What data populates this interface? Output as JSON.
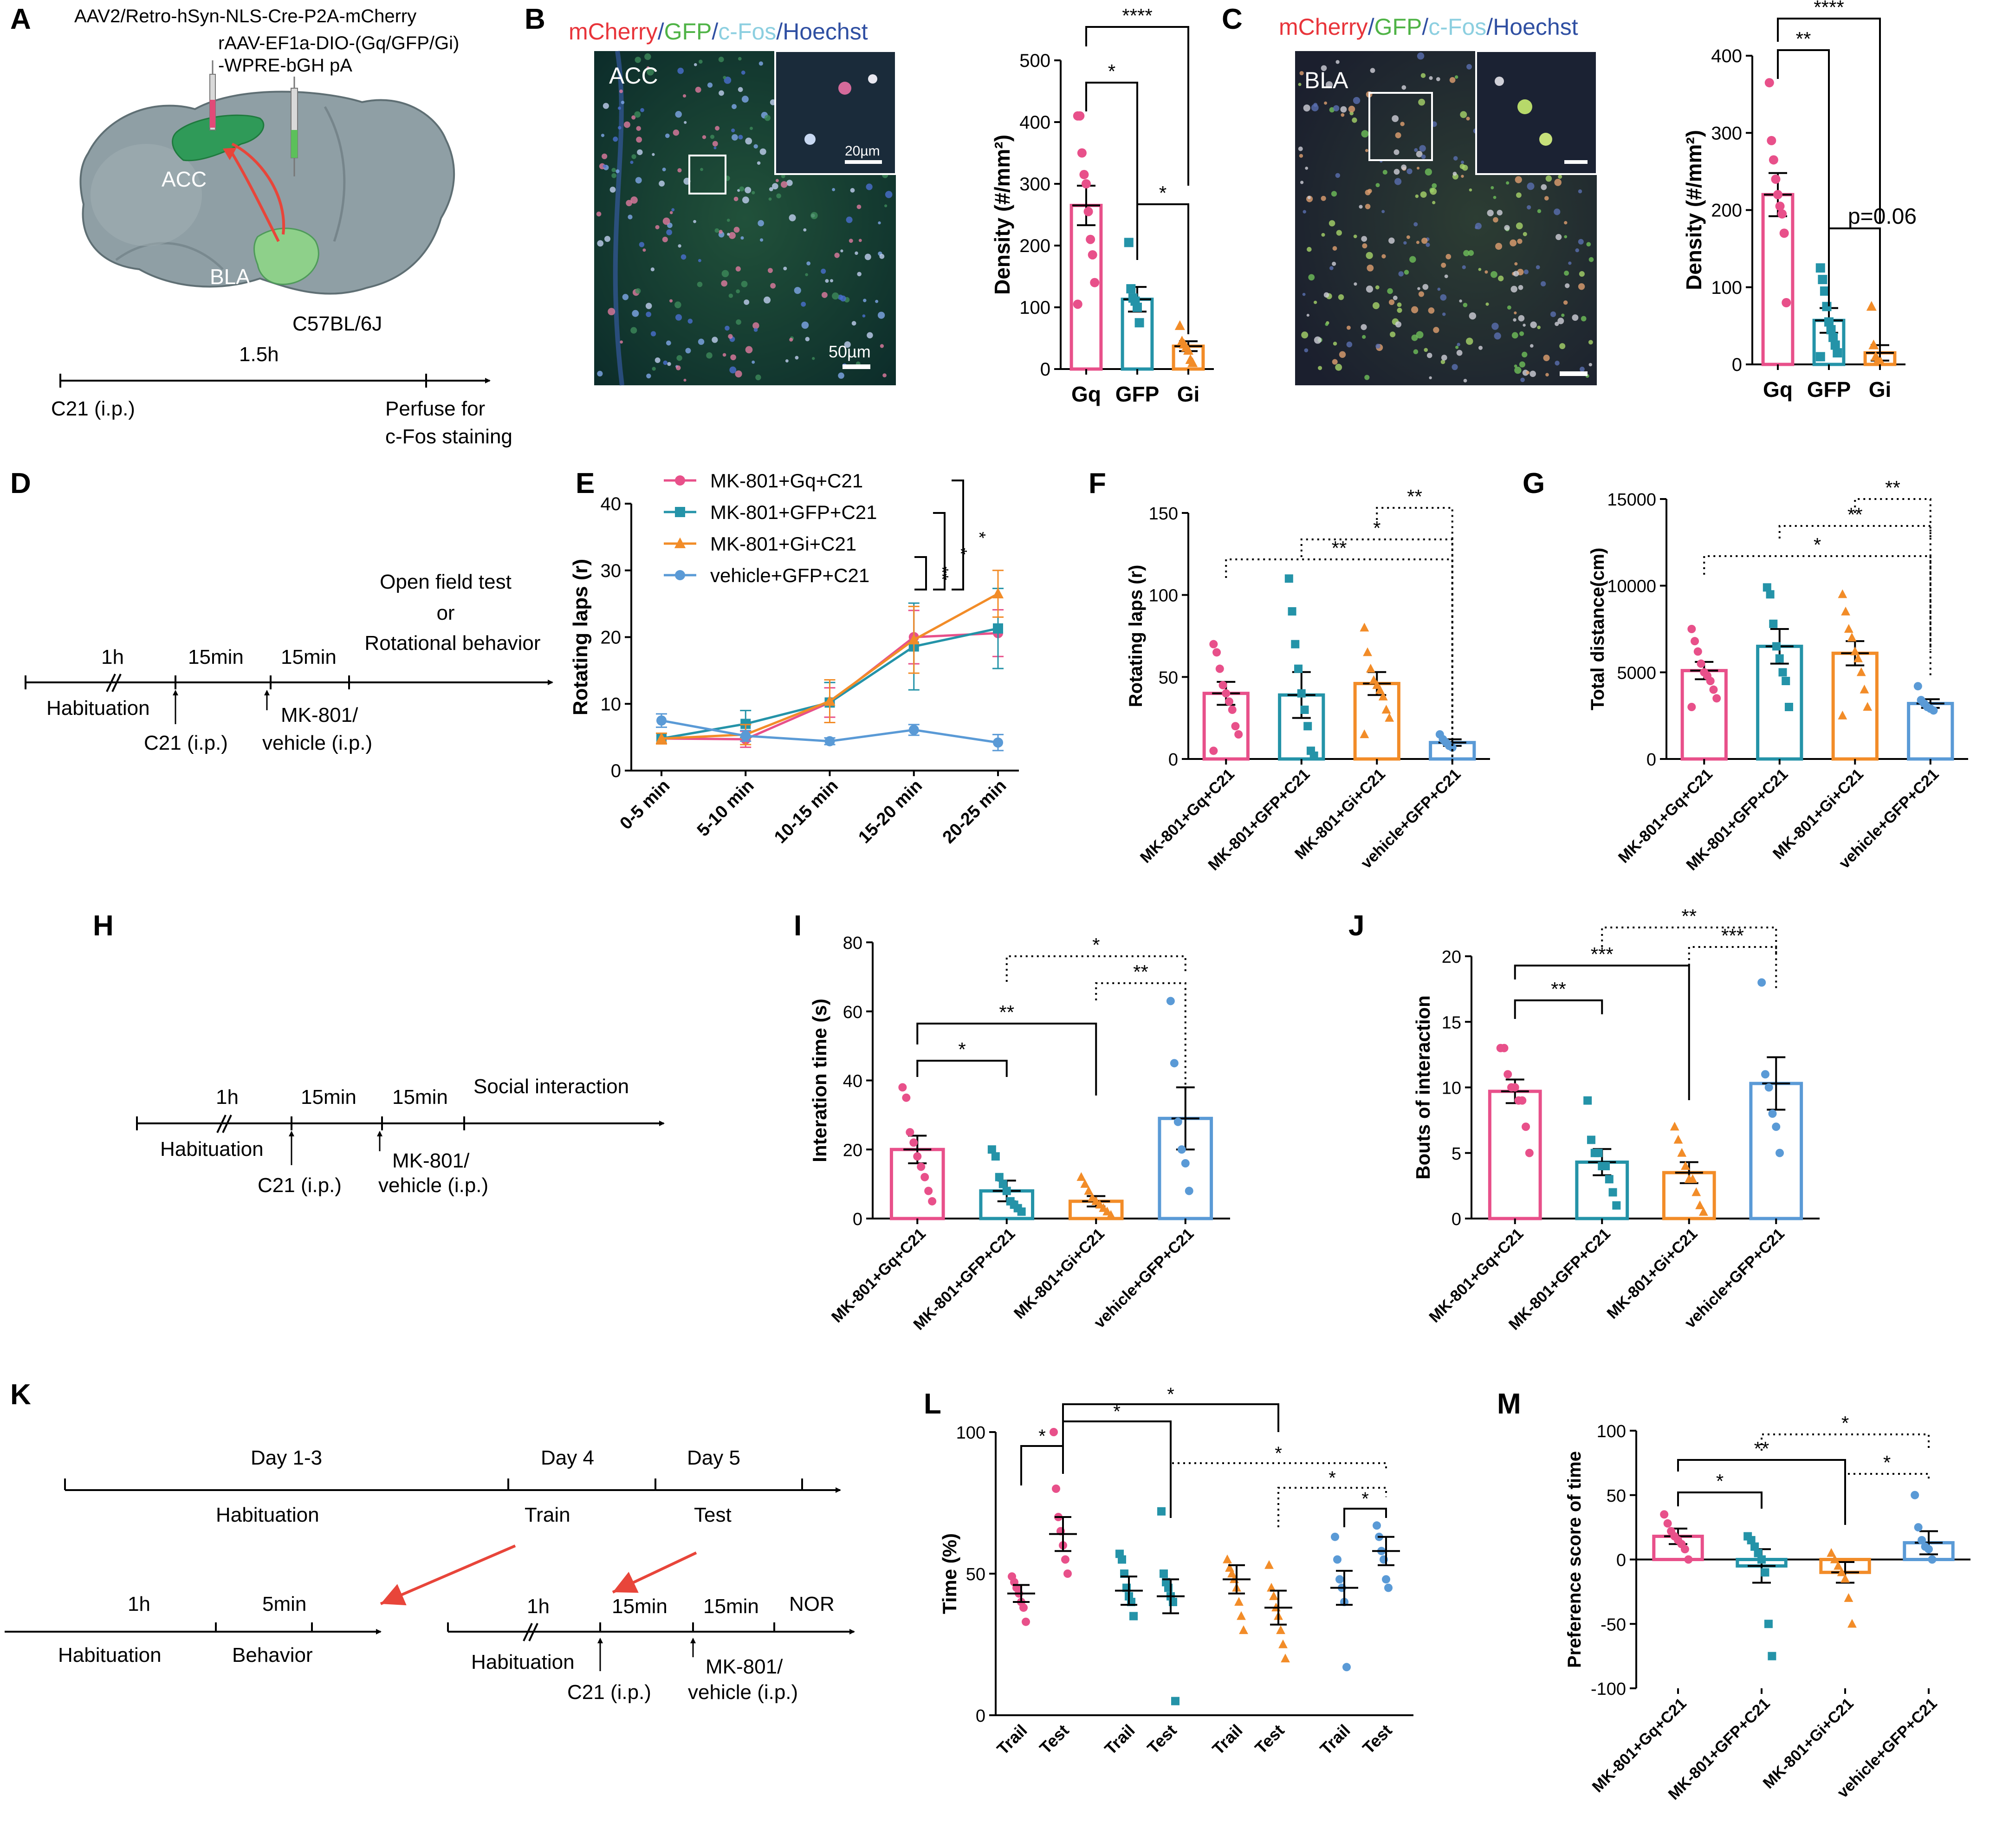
{
  "colors": {
    "gq": "#e8508a",
    "gfp": "#2493a8",
    "gi": "#f28c28",
    "veh": "#5a9ad6",
    "arrow": "#e8453a"
  },
  "panel_letters": [
    "A",
    "B",
    "C",
    "D",
    "E",
    "F",
    "G",
    "H",
    "I",
    "J",
    "K",
    "L",
    "M"
  ],
  "panelA": {
    "virus1": "AAV2/Retro-hSyn-NLS-Cre-P2A-mCherry",
    "virus2_line1": "rAAV-EF1a-DIO-(Gq/GFP/Gi)",
    "virus2_line2": "-WPRE-bGH pA",
    "acc": "ACC",
    "bla": "BLA",
    "strain": "C57BL/6J",
    "time": "1.5h",
    "start": "C21 (i.p.)",
    "end_line1": "Perfuse for",
    "end_line2": "c-Fos staining"
  },
  "micro_legend": [
    {
      "text": "mCherry",
      "color": "#e8343a"
    },
    {
      "text": "/",
      "color": "#2f4fa2"
    },
    {
      "text": "GFP",
      "color": "#4fb346"
    },
    {
      "text": "/",
      "color": "#2f4fa2"
    },
    {
      "text": "c-Fos",
      "color": "#8ccfe0"
    },
    {
      "text": "/",
      "color": "#2f4fa2"
    },
    {
      "text": "Hoechst",
      "color": "#2f4fa2"
    }
  ],
  "micro_B": {
    "region": "ACC",
    "inset_scale": "20µm",
    "scale": "50µm"
  },
  "micro_C": {
    "region": "BLA"
  },
  "timeline_D": {
    "t1": "1h",
    "t2": "15min",
    "t3": "15min",
    "end_line1": "Open field test",
    "end_line2": "or",
    "end_line3": "Rotational behavior",
    "hab": "Habituation",
    "c21": "C21 (i.p.)",
    "mk_line1": "MK-801/",
    "mk_line2": "vehicle (i.p.)"
  },
  "timeline_H": {
    "t1": "1h",
    "t2": "15min",
    "t3": "15min",
    "end": "Social interaction",
    "hab": "Habituation",
    "c21": "C21 (i.p.)",
    "mk_line1": "MK-801/",
    "mk_line2": "vehicle (i.p.)"
  },
  "timeline_K": {
    "d1": "Day 1-3",
    "d2": "Day 4",
    "d3": "Day 5",
    "hab": "Habituation",
    "train": "Train",
    "test": "Test",
    "sub1_t1": "1h",
    "sub1_t2": "5min",
    "sub1_hab": "Habituation",
    "sub1_beh": "Behavior",
    "sub2_t1": "1h",
    "sub2_t2": "15min",
    "sub2_t3": "15min",
    "sub2_end": "NOR",
    "sub2_hab": "Habituation",
    "sub2_c21": "C21 (i.p.)",
    "sub2_mk1": "MK-801/",
    "sub2_mk2": "vehicle (i.p.)"
  },
  "chart_data": [
    {
      "id": "B",
      "type": "bar",
      "categories": [
        "Gq",
        "GFP",
        "Gi"
      ],
      "values": [
        265,
        113,
        37
      ],
      "errors": [
        32,
        20,
        8
      ],
      "ylabel": "Density (#/mm²)",
      "ylim": [
        0,
        500
      ],
      "yticks": [
        0,
        100,
        200,
        300,
        400,
        500
      ],
      "points": [
        [
          410,
          410,
          350,
          315,
          300,
          255,
          210,
          185,
          140,
          105
        ],
        [
          205,
          130,
          115,
          110,
          100,
          75
        ],
        [
          70,
          45,
          40,
          35,
          30,
          15,
          10
        ]
      ],
      "sig": [
        {
          "a": 0,
          "b": 1,
          "label": "*"
        },
        {
          "a": 1,
          "b": 2,
          "label": "*"
        },
        {
          "a": 0,
          "b": 2,
          "label": "****"
        }
      ]
    },
    {
      "id": "C",
      "type": "bar",
      "categories": [
        "Gq",
        "GFP",
        "Gi"
      ],
      "values": [
        220,
        57,
        15
      ],
      "errors": [
        28,
        16,
        10
      ],
      "ylabel": "Density (#/mm²)",
      "ylim": [
        0,
        400
      ],
      "yticks": [
        0,
        100,
        200,
        300,
        400
      ],
      "points": [
        [
          365,
          290,
          265,
          240,
          220,
          205,
          195,
          170,
          80
        ],
        [
          125,
          110,
          95,
          75,
          55,
          45,
          35,
          25,
          15,
          10
        ],
        [
          75,
          25,
          10,
          5,
          5
        ]
      ],
      "sig": [
        {
          "a": 0,
          "b": 1,
          "label": "**"
        },
        {
          "a": 1,
          "b": 2,
          "label": "p=0.06"
        },
        {
          "a": 0,
          "b": 2,
          "label": "****"
        }
      ]
    },
    {
      "id": "E",
      "type": "line",
      "x": [
        "0-5 min",
        "5-10 min",
        "10-15 min",
        "15-20 min",
        "20-25 min"
      ],
      "ylabel": "Rotating laps (r)",
      "ylim": [
        0,
        40
      ],
      "yticks": [
        0,
        10,
        20,
        30,
        40
      ],
      "series": [
        {
          "name": "MK-801+Gq+C21",
          "color": "#e8508a",
          "values": [
            4.8,
            4.7,
            10.2,
            20.0,
            20.6
          ],
          "errors": [
            0.8,
            1.2,
            2.2,
            4.0,
            3.5
          ],
          "marker": "circle"
        },
        {
          "name": "MK-801+GFP+C21",
          "color": "#2493a8",
          "values": [
            4.8,
            7.0,
            10.2,
            18.6,
            21.3
          ],
          "errors": [
            0.8,
            2.0,
            3.0,
            6.5,
            6.0
          ],
          "marker": "square"
        },
        {
          "name": "MK-801+Gi+C21",
          "color": "#f28c28",
          "values": [
            4.8,
            5.4,
            10.4,
            19.6,
            26.5
          ],
          "errors": [
            0.8,
            1.5,
            3.2,
            5.0,
            3.5
          ],
          "marker": "triangle"
        },
        {
          "name": "vehicle+GFP+C21",
          "color": "#5a9ad6",
          "values": [
            7.5,
            5.2,
            4.4,
            6.1,
            4.2
          ],
          "errors": [
            1.0,
            0.8,
            0.5,
            0.8,
            1.2
          ],
          "marker": "circle"
        }
      ],
      "sig": [
        {
          "label": "**"
        },
        {
          "label": "*"
        },
        {
          "label": "*"
        }
      ]
    },
    {
      "id": "F",
      "type": "bar",
      "categories": [
        "MK-801+Gq+C21",
        "MK-801+GFP+C21",
        "MK-801+Gi+C21",
        "vehicle+GFP+C21"
      ],
      "values": [
        40,
        39,
        46,
        10
      ],
      "errors": [
        7,
        14,
        7,
        2
      ],
      "ylabel": "Rotating laps (r)",
      "ylim": [
        0,
        150
      ],
      "yticks": [
        0,
        50,
        100,
        150
      ],
      "points": [
        [
          70,
          65,
          55,
          45,
          40,
          35,
          30,
          20,
          15,
          5
        ],
        [
          110,
          90,
          70,
          55,
          40,
          30,
          20,
          5,
          2
        ],
        [
          80,
          65,
          55,
          48,
          45,
          42,
          38,
          30,
          25,
          15
        ],
        [
          15,
          12,
          10,
          8,
          7
        ]
      ],
      "sig": [
        {
          "a": 0,
          "b": 3,
          "label": "**",
          "style": "dotted"
        },
        {
          "a": 1,
          "b": 3,
          "label": "*",
          "style": "dotted"
        },
        {
          "a": 2,
          "b": 3,
          "label": "**",
          "style": "dotted"
        }
      ]
    },
    {
      "id": "G",
      "type": "bar",
      "categories": [
        "MK-801+Gq+C21",
        "MK-801+GFP+C21",
        "MK-801+Gi+C21",
        "vehicle+GFP+C21"
      ],
      "values": [
        5100,
        6500,
        6100,
        3200
      ],
      "errors": [
        500,
        1000,
        700,
        250
      ],
      "ylabel": "Total distance(cm)",
      "ylim": [
        0,
        15000
      ],
      "yticks": [
        0,
        5000,
        10000,
        15000
      ],
      "points": [
        [
          7500,
          6800,
          6200,
          5500,
          5000,
          4800,
          4500,
          4000,
          3500,
          3000
        ],
        [
          9900,
          9500,
          7800,
          6500,
          5800,
          5000,
          4500,
          3000
        ],
        [
          9500,
          8500,
          7500,
          7000,
          6200,
          5800,
          5000,
          4000,
          3000,
          2500
        ],
        [
          4200,
          3400,
          3200,
          3000,
          2900,
          2800
        ]
      ],
      "sig": [
        {
          "a": 0,
          "b": 3,
          "label": "*",
          "style": "dotted"
        },
        {
          "a": 1,
          "b": 3,
          "label": "**",
          "style": "dotted"
        },
        {
          "a": 2,
          "b": 3,
          "label": "**",
          "style": "dotted"
        }
      ]
    },
    {
      "id": "I",
      "type": "bar",
      "categories": [
        "MK-801+Gq+C21",
        "MK-801+GFP+C21",
        "MK-801+Gi+C21",
        "vehicle+GFP+C21"
      ],
      "values": [
        20,
        8,
        5,
        29
      ],
      "errors": [
        4,
        3,
        1.5,
        9
      ],
      "ylabel": "Interation time (s)",
      "ylim": [
        0,
        80
      ],
      "yticks": [
        0,
        20,
        40,
        60,
        80
      ],
      "points": [
        [
          38,
          35,
          25,
          22,
          18,
          15,
          12,
          8,
          5
        ],
        [
          20,
          18,
          12,
          10,
          8,
          5,
          4,
          3,
          2
        ],
        [
          12,
          10,
          8,
          6,
          5,
          4,
          3,
          2,
          1
        ],
        [
          63,
          45,
          28,
          20,
          16,
          8
        ]
      ],
      "sig": [
        {
          "a": 0,
          "b": 1,
          "label": "*",
          "style": "solid"
        },
        {
          "a": 0,
          "b": 2,
          "label": "**",
          "style": "solid"
        },
        {
          "a": 2,
          "b": 3,
          "label": "**",
          "style": "dotted"
        },
        {
          "a": 1,
          "b": 3,
          "label": "*",
          "style": "dotted"
        }
      ]
    },
    {
      "id": "J",
      "type": "bar",
      "categories": [
        "MK-801+Gq+C21",
        "MK-801+GFP+C21",
        "MK-801+Gi+C21",
        "vehicle+GFP+C21"
      ],
      "values": [
        9.7,
        4.3,
        3.5,
        10.3
      ],
      "errors": [
        0.9,
        1.0,
        0.8,
        2.0
      ],
      "ylabel": "Bouts of interaction",
      "ylim": [
        0,
        20
      ],
      "yticks": [
        0,
        5,
        10,
        15,
        20
      ],
      "points": [
        [
          13,
          13,
          11,
          10,
          10,
          9,
          9,
          7,
          5
        ],
        [
          9,
          6,
          5,
          5,
          4,
          4,
          3,
          2,
          1
        ],
        [
          7,
          6,
          5,
          4,
          3,
          3,
          2,
          1,
          0.5
        ],
        [
          18,
          11,
          10,
          8,
          7,
          5
        ]
      ],
      "sig": [
        {
          "a": 0,
          "b": 1,
          "label": "**",
          "style": "solid"
        },
        {
          "a": 0,
          "b": 2,
          "label": "***",
          "style": "solid"
        },
        {
          "a": 2,
          "b": 3,
          "label": "***",
          "style": "dotted"
        },
        {
          "a": 1,
          "b": 3,
          "label": "**",
          "style": "dotted"
        }
      ]
    },
    {
      "id": "L",
      "type": "scatter",
      "categories": [
        "Trail",
        "Test",
        "Trail",
        "Test",
        "Trail",
        "Test",
        "Trail",
        "Test"
      ],
      "groups": [
        "gq",
        "gq",
        "gfp",
        "gfp",
        "gi",
        "gi",
        "veh",
        "veh"
      ],
      "means": [
        43,
        64,
        44,
        42,
        48,
        38,
        45,
        58
      ],
      "errors": [
        3,
        6,
        5,
        6,
        5,
        6,
        6,
        5
      ],
      "ylabel": "Time (%)",
      "ylim": [
        0,
        100
      ],
      "yticks": [
        0,
        50,
        100
      ],
      "points": [
        [
          49,
          47,
          45,
          43,
          40,
          38,
          33
        ],
        [
          100,
          80,
          70,
          65,
          60,
          55,
          50
        ],
        [
          57,
          55,
          50,
          45,
          42,
          40,
          35
        ],
        [
          72,
          50,
          47,
          45,
          42,
          40,
          5
        ],
        [
          55,
          52,
          50,
          48,
          45,
          40,
          35,
          30
        ],
        [
          53,
          45,
          42,
          38,
          35,
          30,
          25,
          20
        ],
        [
          63,
          55,
          48,
          45,
          40,
          17
        ],
        [
          67,
          63,
          58,
          55,
          48,
          45
        ]
      ],
      "sig": [
        {
          "a": 0,
          "b": 1,
          "label": "*",
          "style": "solid"
        },
        {
          "a": 1,
          "b": 3,
          "label": "*",
          "style": "solid"
        },
        {
          "a": 1,
          "b": 5,
          "label": "*",
          "style": "solid"
        },
        {
          "a": 3,
          "b": 7,
          "label": "*",
          "style": "dotted"
        },
        {
          "a": 5,
          "b": 7,
          "label": "*",
          "style": "dotted"
        },
        {
          "a": 6,
          "b": 7,
          "label": "*",
          "style": "solid"
        }
      ]
    },
    {
      "id": "M",
      "type": "bar",
      "categories": [
        "MK-801+Gq+C21",
        "MK-801+GFP+C21",
        "MK-801+Gi+C21",
        "vehicle+GFP+C21"
      ],
      "values": [
        18,
        -5,
        -10,
        13
      ],
      "errors": [
        6,
        13,
        8,
        9
      ],
      "ylabel": "Preference score of time",
      "ylim": [
        -100,
        100
      ],
      "yticks": [
        -100,
        -50,
        0,
        50,
        100
      ],
      "points": [
        [
          35,
          28,
          22,
          18,
          15,
          12,
          8,
          0
        ],
        [
          18,
          15,
          10,
          5,
          0,
          -10,
          -50,
          -75
        ],
        [
          5,
          0,
          -5,
          -10,
          -15,
          -30,
          -50
        ],
        [
          50,
          25,
          15,
          10,
          8,
          0
        ]
      ],
      "sig": [
        {
          "a": 0,
          "b": 1,
          "label": "*",
          "style": "solid"
        },
        {
          "a": 0,
          "b": 2,
          "label": "**",
          "style": "solid"
        },
        {
          "a": 2,
          "b": 3,
          "label": "*",
          "style": "dotted"
        },
        {
          "a": 1,
          "b": 3,
          "label": "*",
          "style": "dotted"
        }
      ]
    }
  ]
}
